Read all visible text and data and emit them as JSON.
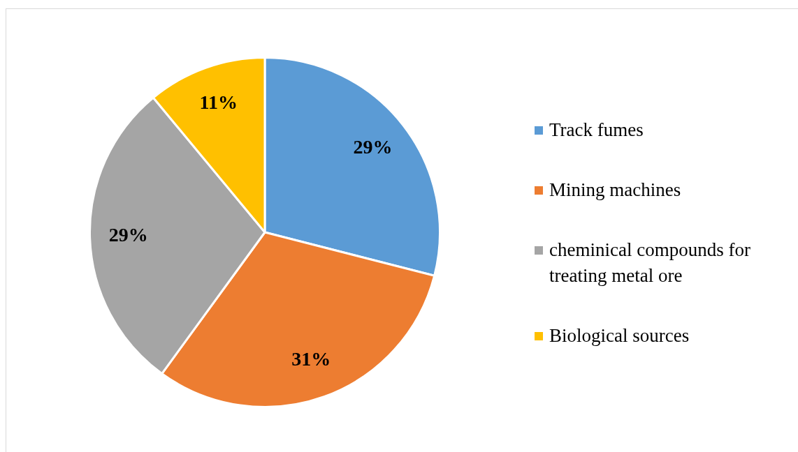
{
  "chart_data": {
    "type": "pie",
    "categories": [
      "Track fumes",
      "Mining machines",
      "cheminical compounds for treating metal ore",
      "Biological sources"
    ],
    "values": [
      29,
      31,
      29,
      11
    ],
    "colors": [
      "#5b9bd5",
      "#ed7d31",
      "#a5a5a5",
      "#ffc000"
    ],
    "value_labels": [
      "29%",
      "31%",
      "29%",
      "11%"
    ],
    "legend": "right"
  }
}
